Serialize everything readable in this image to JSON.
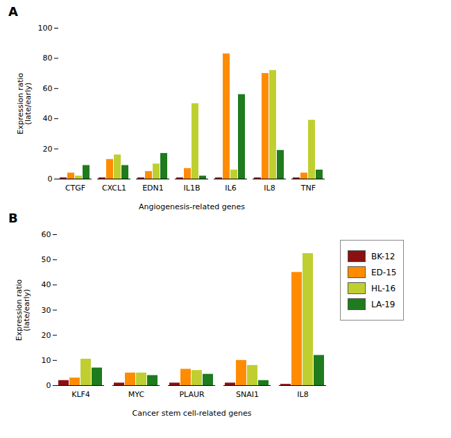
{
  "chart_data": [
    {
      "type": "bar",
      "title": "A",
      "categories": [
        "CTGF",
        "CXCL1",
        "EDN1",
        "IL1B",
        "IL6",
        "IL8",
        "TNF"
      ],
      "series": [
        {
          "name": "BK-12",
          "color": "#8B1010",
          "values": [
            0.8,
            0.8,
            0.8,
            0.8,
            0.8,
            0.8,
            0.8
          ]
        },
        {
          "name": "ED-15",
          "color": "#FF8C00",
          "values": [
            4,
            13,
            5,
            7,
            83,
            70,
            4
          ]
        },
        {
          "name": "HL-16",
          "color": "#BFCF30",
          "values": [
            2,
            16,
            10,
            50,
            6,
            72,
            39
          ]
        },
        {
          "name": "LA-19",
          "color": "#1E7B1E",
          "values": [
            9,
            9,
            17,
            2,
            56,
            19,
            6
          ]
        }
      ],
      "ylim": [
        0,
        100
      ],
      "yticks": [
        0,
        20,
        40,
        60,
        80,
        100
      ],
      "ylabel": "Expression ratio\n(late/early)",
      "xlabel": "Angiogenesis-related genes",
      "grid": false
    },
    {
      "type": "bar",
      "title": "B",
      "categories": [
        "KLF4",
        "MYC",
        "PLAUR",
        "SNAI1",
        "IL8"
      ],
      "series": [
        {
          "name": "BK-12",
          "color": "#8B1010",
          "values": [
            2,
            1,
            1,
            1,
            0.5
          ]
        },
        {
          "name": "ED-15",
          "color": "#FF8C00",
          "values": [
            3,
            5,
            6.5,
            10,
            45
          ]
        },
        {
          "name": "HL-16",
          "color": "#BFCF30",
          "values": [
            10.5,
            5,
            6,
            8,
            52.5
          ]
        },
        {
          "name": "LA-19",
          "color": "#1E7B1E",
          "values": [
            7,
            4,
            4.5,
            2,
            12
          ]
        }
      ],
      "ylim": [
        0,
        60
      ],
      "yticks": [
        0,
        10,
        20,
        30,
        40,
        50,
        60
      ],
      "ylabel": "Expression ratio\n(late/early)",
      "xlabel": "Cancer stem cell-related genes",
      "grid": false,
      "legend": "right"
    }
  ]
}
